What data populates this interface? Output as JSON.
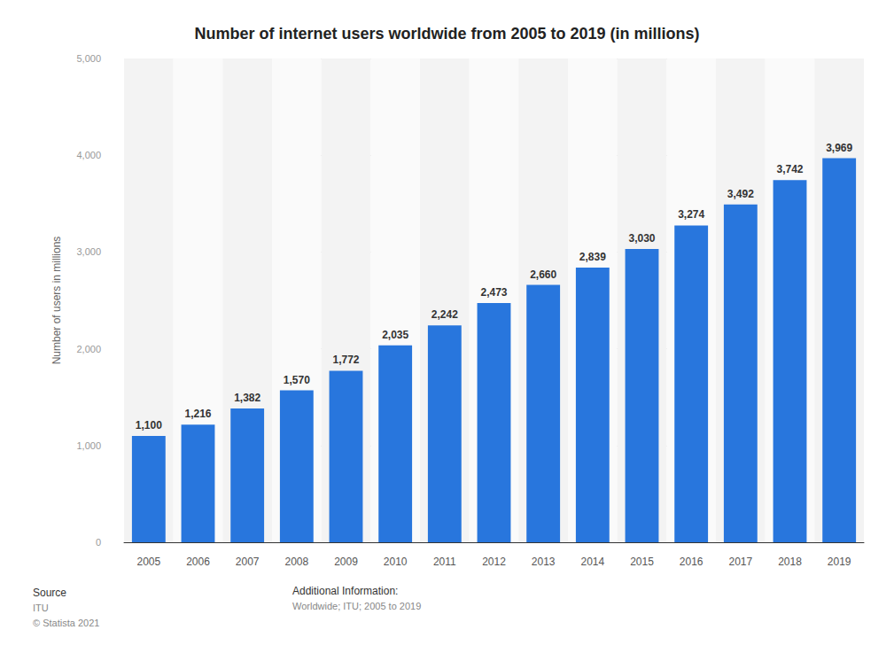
{
  "chart_data": {
    "type": "bar",
    "title": "Number of internet users worldwide from 2005 to 2019 (in millions)",
    "ylabel": "Number of users in millions",
    "categories": [
      "2005",
      "2006",
      "2007",
      "2008",
      "2009",
      "2010",
      "2011",
      "2012",
      "2013",
      "2014",
      "2015",
      "2016",
      "2017",
      "2018",
      "2019"
    ],
    "values": [
      1100,
      1216,
      1382,
      1570,
      1772,
      2035,
      2242,
      2473,
      2660,
      2839,
      3030,
      3274,
      3492,
      3742,
      3969
    ],
    "value_labels": [
      "1,100",
      "1,216",
      "1,382",
      "1,570",
      "1,772",
      "2,035",
      "2,242",
      "2,473",
      "2,660",
      "2,839",
      "3,030",
      "3,274",
      "3,492",
      "3,742",
      "3,969"
    ],
    "color": "#2876dd",
    "ylim": [
      0,
      5000
    ],
    "yticks": [
      0,
      {
        "value": 1000,
        "label": "1,000"
      },
      {
        "value": 2000,
        "label": "2,000"
      },
      {
        "value": 3000,
        "label": "3,000"
      },
      {
        "value": 4000,
        "label": "4,000"
      },
      {
        "value": 5000,
        "label": "5,000"
      }
    ],
    "grid": true,
    "data_labels": true,
    "source_title": "Source",
    "source": "ITU",
    "copyright": "© Statista 2021",
    "info_title": "Additional Information:",
    "info": "Worldwide; ITU; 2005 to 2019"
  }
}
